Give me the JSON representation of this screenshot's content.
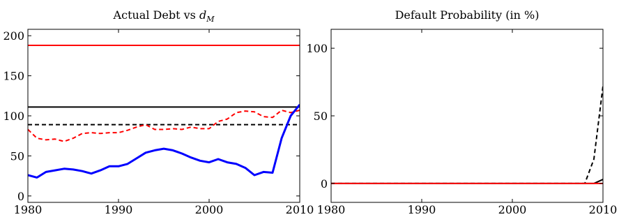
{
  "chart_data": [
    {
      "type": "line",
      "title": "Actual Debt vs d_M",
      "title_parts": {
        "main": "Actual Debt vs ",
        "var": "d",
        "sub": "M"
      },
      "xlabel": "",
      "ylabel": "",
      "xlim": [
        1980,
        2010
      ],
      "ylim": [
        0,
        200
      ],
      "xticks": [
        1980,
        1990,
        2000,
        2010
      ],
      "yticks": [
        0,
        50,
        100,
        150,
        200
      ],
      "grid": false,
      "series": [
        {
          "style": "solid",
          "color": "#ff0000",
          "width": 2,
          "x": [
            1980,
            2010
          ],
          "y": [
            188,
            188
          ]
        },
        {
          "style": "solid",
          "color": "#000000",
          "width": 2,
          "x": [
            1980,
            2010
          ],
          "y": [
            111,
            111
          ]
        },
        {
          "style": "dashed",
          "color": "#000000",
          "width": 2,
          "x": [
            1980,
            2010
          ],
          "y": [
            89,
            89
          ]
        },
        {
          "style": "dashed",
          "color": "#ff0000",
          "width": 2,
          "x": [
            1980,
            1981,
            1982,
            1983,
            1984,
            1985,
            1986,
            1987,
            1988,
            1989,
            1990,
            1991,
            1992,
            1993,
            1994,
            1995,
            1996,
            1997,
            1998,
            1999,
            2000,
            2001,
            2002,
            2003,
            2004,
            2005,
            2006,
            2007,
            2008,
            2009,
            2010
          ],
          "y": [
            83,
            72,
            70,
            71,
            68,
            72,
            78,
            79,
            78,
            79,
            79,
            82,
            86,
            89,
            83,
            83,
            84,
            83,
            86,
            84,
            84,
            93,
            96,
            104,
            106,
            105,
            99,
            98,
            107,
            104,
            107
          ]
        },
        {
          "style": "solid",
          "color": "#0000ff",
          "width": 3,
          "x": [
            1980,
            1981,
            1982,
            1983,
            1984,
            1985,
            1986,
            1987,
            1988,
            1989,
            1990,
            1991,
            1992,
            1993,
            1994,
            1995,
            1996,
            1997,
            1998,
            1999,
            2000,
            2001,
            2002,
            2003,
            2004,
            2005,
            2006,
            2007,
            2008,
            2009,
            2010
          ],
          "y": [
            26,
            23,
            30,
            32,
            34,
            33,
            31,
            28,
            32,
            37,
            37,
            40,
            47,
            54,
            57,
            59,
            57,
            53,
            48,
            44,
            42,
            46,
            42,
            40,
            35,
            26,
            30,
            29,
            72,
            100,
            114
          ]
        }
      ]
    },
    {
      "type": "line",
      "title": "Default Probability (in %)",
      "xlabel": "",
      "ylabel": "",
      "xlim": [
        1980,
        2010
      ],
      "ylim": [
        0,
        100
      ],
      "xticks": [
        1980,
        1990,
        2000,
        2010
      ],
      "yticks": [
        0,
        50,
        100
      ],
      "grid": false,
      "series": [
        {
          "style": "solid",
          "color": "#000000",
          "width": 2,
          "x": [
            1980,
            2008,
            2009,
            2010
          ],
          "y": [
            0,
            0,
            0,
            3
          ]
        },
        {
          "style": "dashed",
          "color": "#000000",
          "width": 2,
          "x": [
            1980,
            2008,
            2009,
            2010
          ],
          "y": [
            0,
            0,
            18,
            72
          ]
        },
        {
          "style": "solid",
          "color": "#ff0000",
          "width": 2,
          "x": [
            1980,
            2010
          ],
          "y": [
            0,
            0
          ]
        }
      ]
    }
  ]
}
